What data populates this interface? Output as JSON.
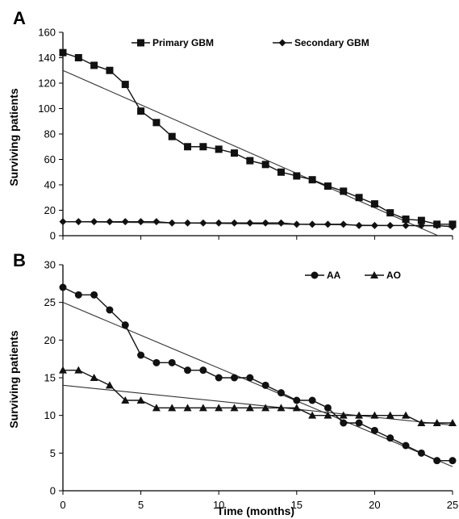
{
  "chart_data": [
    {
      "panel_label": "A",
      "type": "line",
      "xlabel": "",
      "ylabel": "Surviving  patients",
      "xlim": [
        0,
        25
      ],
      "ylim": [
        0,
        160
      ],
      "yticks": [
        0,
        20,
        40,
        60,
        80,
        100,
        120,
        140,
        160
      ],
      "grid": false,
      "legend_position": "top",
      "series": [
        {
          "name": "Primary GBM",
          "marker": "square",
          "x": [
            0,
            1,
            2,
            3,
            4,
            5,
            6,
            7,
            8,
            9,
            10,
            11,
            12,
            13,
            14,
            15,
            16,
            17,
            18,
            19,
            20,
            21,
            22,
            23,
            24,
            25
          ],
          "values": [
            144,
            140,
            134,
            130,
            119,
            98,
            89,
            78,
            70,
            70,
            68,
            65,
            59,
            56,
            50,
            47,
            44,
            39,
            35,
            30,
            25,
            18,
            13,
            12,
            9,
            9
          ]
        },
        {
          "name": "Secondary GBM",
          "marker": "diamond",
          "x": [
            0,
            1,
            2,
            3,
            4,
            5,
            6,
            7,
            8,
            9,
            10,
            11,
            12,
            13,
            14,
            15,
            16,
            17,
            18,
            19,
            20,
            21,
            22,
            23,
            24,
            25
          ],
          "values": [
            11,
            11,
            11,
            11,
            11,
            11,
            11,
            10,
            10,
            10,
            10,
            10,
            10,
            10,
            10,
            9,
            9,
            9,
            9,
            8,
            8,
            8,
            8,
            8,
            8,
            7
          ]
        }
      ],
      "trendlines": [
        {
          "series": "Primary GBM",
          "x": [
            0,
            25
          ],
          "y": [
            130,
            -5
          ]
        },
        {
          "series": "Secondary GBM",
          "x": [
            0,
            25
          ],
          "y": [
            11,
            7.5
          ]
        }
      ]
    },
    {
      "panel_label": "B",
      "type": "line",
      "xlabel": "Time (months)",
      "ylabel": "Surviving  patients",
      "xlim": [
        0,
        25
      ],
      "ylim": [
        0,
        30
      ],
      "xticks": [
        0,
        5,
        10,
        15,
        20,
        25
      ],
      "yticks": [
        0,
        5,
        10,
        15,
        20,
        25,
        30
      ],
      "grid": false,
      "legend_position": "top-right",
      "series": [
        {
          "name": "AA",
          "marker": "circle",
          "x": [
            0,
            1,
            2,
            3,
            4,
            5,
            6,
            7,
            8,
            9,
            10,
            11,
            12,
            13,
            14,
            15,
            16,
            17,
            18,
            19,
            20,
            21,
            22,
            23,
            24,
            25
          ],
          "values": [
            27,
            26,
            26,
            24,
            22,
            18,
            17,
            17,
            16,
            16,
            15,
            15,
            15,
            14,
            13,
            12,
            12,
            11,
            9,
            9,
            8,
            7,
            6,
            5,
            4,
            4
          ]
        },
        {
          "name": "AO",
          "marker": "triangle",
          "x": [
            0,
            1,
            2,
            3,
            4,
            5,
            6,
            7,
            8,
            9,
            10,
            11,
            12,
            13,
            14,
            15,
            16,
            17,
            18,
            19,
            20,
            21,
            22,
            23,
            24,
            25
          ],
          "values": [
            16,
            16,
            15,
            14,
            12,
            12,
            11,
            11,
            11,
            11,
            11,
            11,
            11,
            11,
            11,
            11,
            10,
            10,
            10,
            10,
            10,
            10,
            10,
            9,
            9,
            9
          ]
        }
      ],
      "trendlines": [
        {
          "series": "AA",
          "x": [
            0,
            25
          ],
          "y": [
            25,
            3.2
          ]
        },
        {
          "series": "AO",
          "x": [
            0,
            25
          ],
          "y": [
            14,
            8.7
          ]
        }
      ]
    }
  ]
}
